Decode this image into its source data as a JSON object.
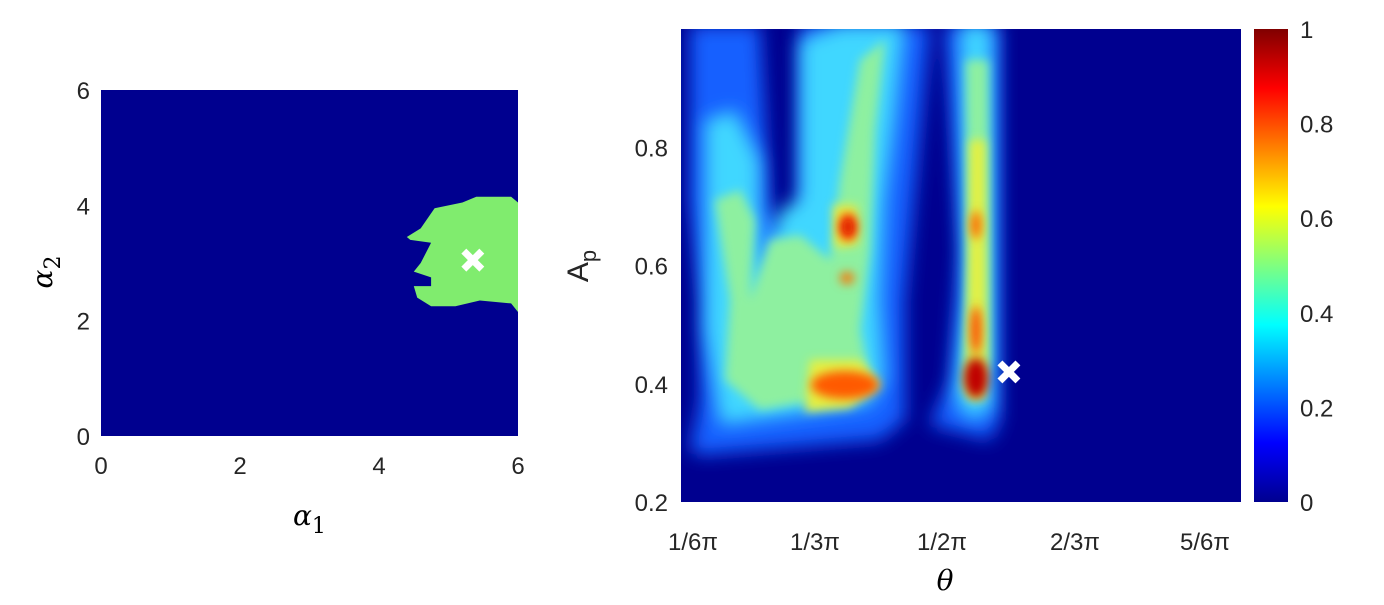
{
  "chart_data": [
    {
      "type": "heatmap",
      "xlabel": "α1",
      "ylabel": "α2",
      "xlim": [
        0,
        6
      ],
      "ylim": [
        0,
        6
      ],
      "x_ticks": [
        "0",
        "2",
        "4",
        "6"
      ],
      "y_ticks": [
        "0",
        "2",
        "4",
        "6"
      ],
      "background_value": 0,
      "background_color": "#00008f",
      "region_color": "#80ec6e",
      "region_outline": [
        [
          6.0,
          2.15
        ],
        [
          5.9,
          2.3
        ],
        [
          5.45,
          2.35
        ],
        [
          5.1,
          2.25
        ],
        [
          4.75,
          2.25
        ],
        [
          4.55,
          2.4
        ],
        [
          4.5,
          2.6
        ],
        [
          4.75,
          2.6
        ],
        [
          4.75,
          2.75
        ],
        [
          4.5,
          2.85
        ],
        [
          4.6,
          3.0
        ],
        [
          4.75,
          3.35
        ],
        [
          4.45,
          3.4
        ],
        [
          4.4,
          3.45
        ],
        [
          4.6,
          3.6
        ],
        [
          4.8,
          3.95
        ],
        [
          5.2,
          4.05
        ],
        [
          5.4,
          4.15
        ],
        [
          5.9,
          4.15
        ],
        [
          6.0,
          4.05
        ]
      ],
      "marker": {
        "x": 5.35,
        "y": 3.05,
        "symbol": "x",
        "color": "#ffffff"
      }
    },
    {
      "type": "heatmap",
      "xlabel": "θ",
      "ylabel": "A_p",
      "xlim": [
        0.5236,
        2.618
      ],
      "ylim": [
        0.2,
        1.0
      ],
      "x_ticks": [
        "1/6π",
        "1/3π",
        "1/2π",
        "2/3π",
        "5/6π"
      ],
      "y_ticks": [
        "0.2",
        "0.4",
        "0.6",
        "0.8"
      ],
      "colorbar": {
        "min": 0,
        "max": 1,
        "ticks": [
          "0",
          "0.2",
          "0.4",
          "0.6",
          "0.8",
          "1"
        ],
        "colormap": "jet"
      },
      "marker": {
        "x": 1.75,
        "y": 0.42,
        "symbol": "x",
        "color": "#ffffff"
      },
      "description_values": {
        "note_regions": [
          {
            "theta": [
              0.53,
              1.3
            ],
            "Ap": [
              0.28,
              1.0
            ],
            "level": 0.35
          },
          {
            "theta": [
              1.02,
              1.2
            ],
            "Ap": [
              0.33,
              0.46
            ],
            "level": 0.8
          },
          {
            "theta": [
              1.09,
              1.13
            ],
            "Ap": [
              0.62,
              0.69
            ],
            "level": 0.85
          },
          {
            "theta": [
              1.7,
              1.83
            ],
            "Ap": [
              0.33,
              1.0
            ],
            "level": 0.45
          },
          {
            "theta": [
              1.73,
              1.79
            ],
            "Ap": [
              0.36,
              0.5
            ],
            "level": 1.0
          }
        ]
      }
    }
  ]
}
